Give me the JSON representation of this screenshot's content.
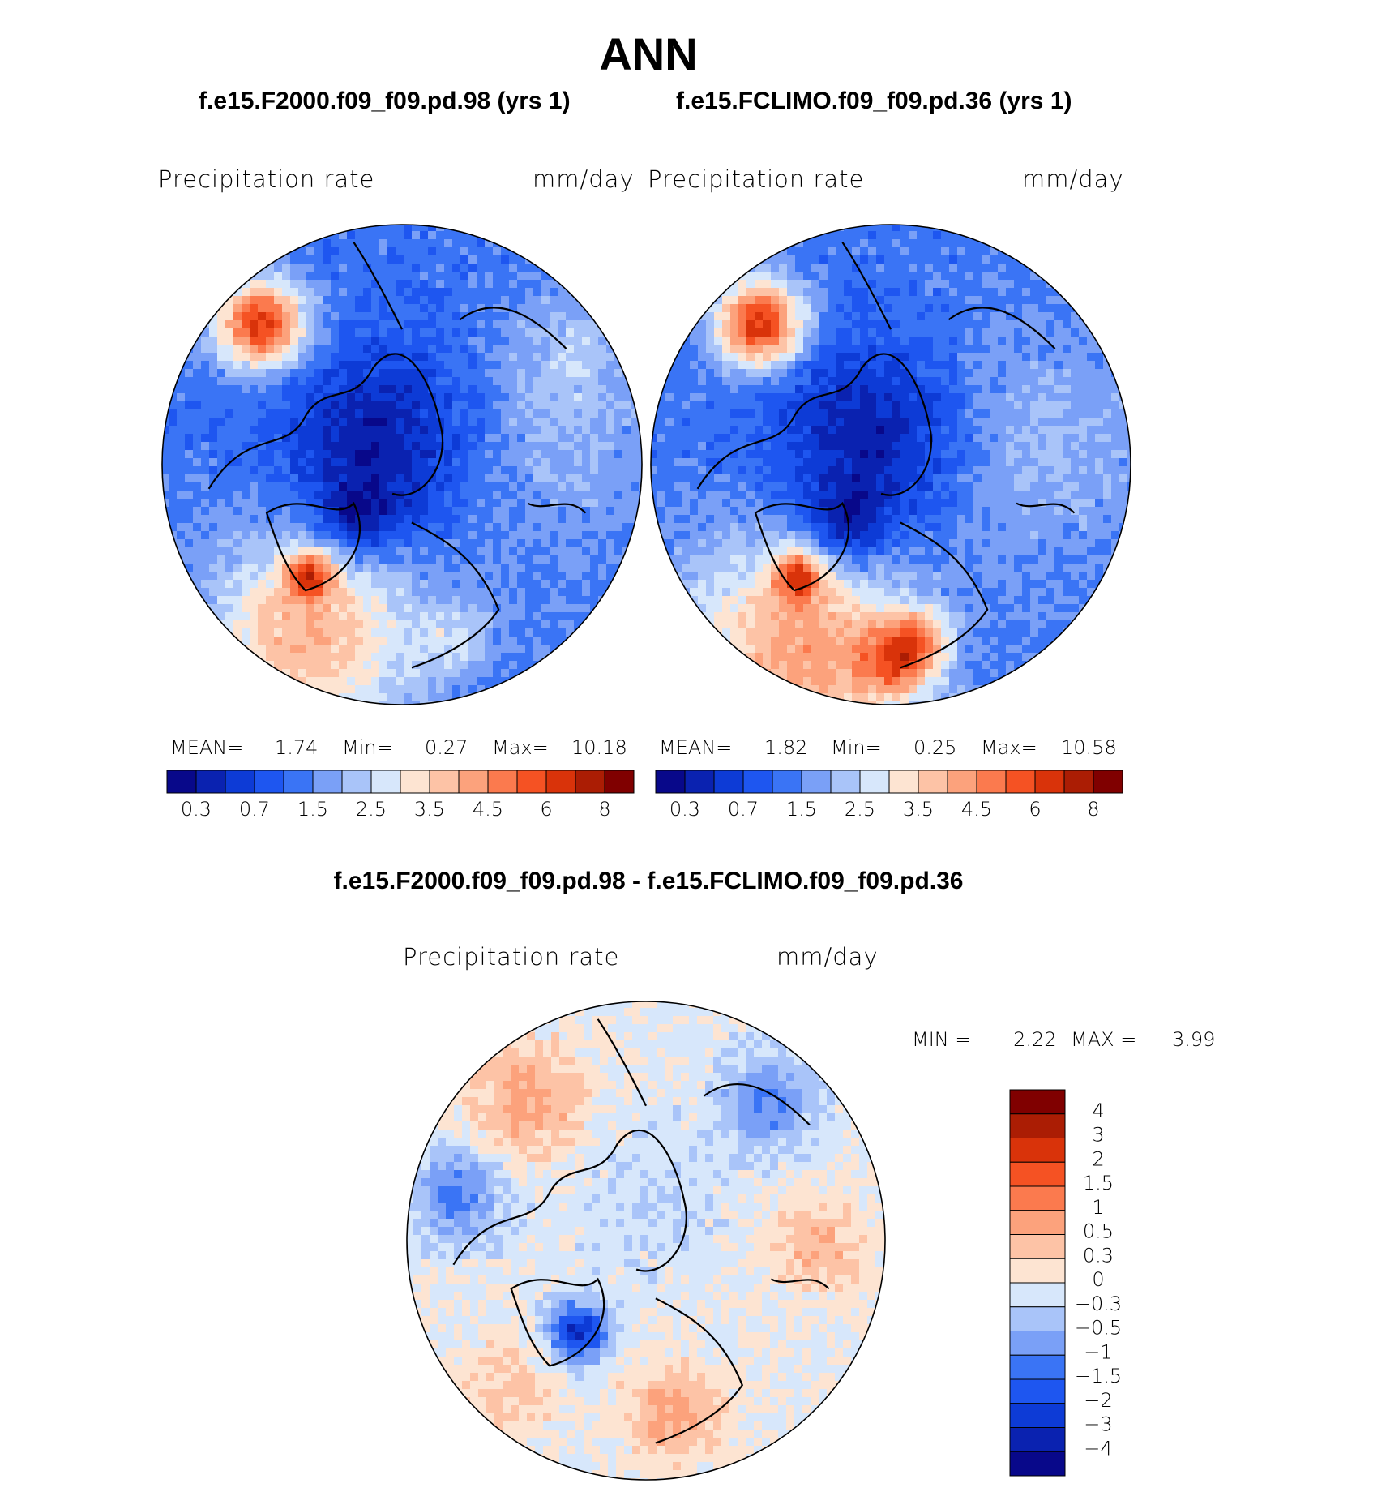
{
  "header": {
    "title": "ANN",
    "left_case": "f.e15.F2000.f09_f09.pd.98 (yrs 1)",
    "right_case": "f.e15.FCLIMO.f09_f09.pd.36 (yrs 1)",
    "diff_title": "f.e15.F2000.f09_f09.pd.98 - f.e15.FCLIMO.f09_f09.pd.36"
  },
  "panels": {
    "left": {
      "variable": "Precipitation rate",
      "units": "mm/day",
      "mean_label": "MEAN=",
      "mean": "1.74",
      "min_label": "Min=",
      "min": "0.27",
      "max_label": "Max=",
      "max": "10.18"
    },
    "right": {
      "variable": "Precipitation rate",
      "units": "mm/day",
      "mean_label": "MEAN=",
      "mean": "1.82",
      "min_label": "Min=",
      "min": "0.25",
      "max_label": "Max=",
      "max": "10.58"
    },
    "diff": {
      "variable": "Precipitation rate",
      "units": "mm/day",
      "min_label": "MIN =",
      "min": "−2.22",
      "max_label": "MAX =",
      "max": "3.99"
    }
  },
  "chart_data": [
    {
      "type": "heatmap",
      "projection": "north polar stereographic",
      "title": "f.e15.F2000.f09_f09.pd.98 (yrs 1)",
      "variable": "Precipitation rate",
      "units": "mm/day",
      "mean": 1.74,
      "min": 0.27,
      "max": 10.18,
      "colorbar": {
        "levels": [
          0.2,
          0.3,
          0.5,
          0.7,
          1,
          1.5,
          2,
          2.5,
          3,
          3.5,
          4,
          4.5,
          5,
          6,
          7,
          8
        ],
        "tick_labels": [
          "0.3",
          "0.7",
          "1.5",
          "2.5",
          "3.5",
          "4.5",
          "6",
          "8"
        ],
        "colors": [
          "#08088a",
          "#0a22b0",
          "#0d3bd6",
          "#1e56f0",
          "#3a74f5",
          "#7aa0f7",
          "#a9c4f9",
          "#d7e7fb",
          "#fde4d2",
          "#fdc3a6",
          "#fca27c",
          "#fb7a4e",
          "#f55223",
          "#d9330a",
          "#ab1d04",
          "#800000"
        ]
      }
    },
    {
      "type": "heatmap",
      "projection": "north polar stereographic",
      "title": "f.e15.FCLIMO.f09_f09.pd.36 (yrs 1)",
      "variable": "Precipitation rate",
      "units": "mm/day",
      "mean": 1.82,
      "min": 0.25,
      "max": 10.58,
      "colorbar": {
        "levels": [
          0.2,
          0.3,
          0.5,
          0.7,
          1,
          1.5,
          2,
          2.5,
          3,
          3.5,
          4,
          4.5,
          5,
          6,
          7,
          8
        ],
        "tick_labels": [
          "0.3",
          "0.7",
          "1.5",
          "2.5",
          "3.5",
          "4.5",
          "6",
          "8"
        ],
        "colors": [
          "#08088a",
          "#0a22b0",
          "#0d3bd6",
          "#1e56f0",
          "#3a74f5",
          "#7aa0f7",
          "#a9c4f9",
          "#d7e7fb",
          "#fde4d2",
          "#fdc3a6",
          "#fca27c",
          "#fb7a4e",
          "#f55223",
          "#d9330a",
          "#ab1d04",
          "#800000"
        ]
      }
    },
    {
      "type": "heatmap",
      "projection": "north polar stereographic",
      "title": "f.e15.F2000.f09_f09.pd.98 - f.e15.FCLIMO.f09_f09.pd.36",
      "variable": "Precipitation rate",
      "units": "mm/day",
      "min": -2.22,
      "max": 3.99,
      "colorbar": {
        "orientation": "vertical",
        "tick_labels": [
          "4",
          "3",
          "2",
          "1.5",
          "1",
          "0.5",
          "0.3",
          "0",
          "−0.3",
          "−0.5",
          "−1",
          "−1.5",
          "−2",
          "−3",
          "−4"
        ],
        "colors": [
          "#800000",
          "#ab1d04",
          "#d9330a",
          "#f55223",
          "#fb7a4e",
          "#fca27c",
          "#fdc3a6",
          "#fde4d2",
          "#d7e7fb",
          "#a9c4f9",
          "#7aa0f7",
          "#3a74f5",
          "#1e56f0",
          "#0d3bd6",
          "#0a22b0",
          "#08088a"
        ]
      }
    }
  ]
}
